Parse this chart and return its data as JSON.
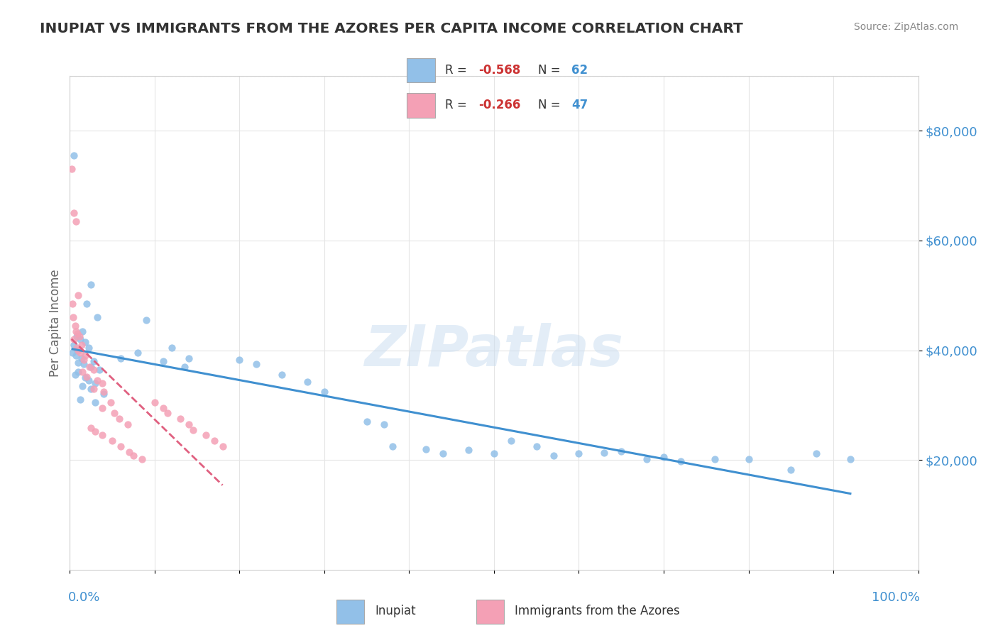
{
  "title": "INUPIAT VS IMMIGRANTS FROM THE AZORES PER CAPITA INCOME CORRELATION CHART",
  "source": "Source: ZipAtlas.com",
  "ylabel": "Per Capita Income",
  "legend_label1": "Inupiat",
  "legend_label2": "Immigrants from the Azores",
  "r1": -0.568,
  "n1": 62,
  "r2": -0.266,
  "n2": 47,
  "yticks": [
    20000,
    40000,
    60000,
    80000
  ],
  "ytick_labels": [
    "$20,000",
    "$40,000",
    "$60,000",
    "$80,000"
  ],
  "color_blue": "#92c0e8",
  "color_pink": "#f4a0b5",
  "line_blue": "#4090d0",
  "line_pink": "#e06080",
  "watermark": "ZIPatlas",
  "title_color": "#333333",
  "source_color": "#888888",
  "tick_color": "#4090d0",
  "inupiat_points": [
    [
      0.5,
      75500
    ],
    [
      2.5,
      52000
    ],
    [
      2.0,
      48500
    ],
    [
      3.2,
      46000
    ],
    [
      1.5,
      43500
    ],
    [
      0.8,
      42500
    ],
    [
      1.2,
      42000
    ],
    [
      1.8,
      41500
    ],
    [
      0.5,
      41000
    ],
    [
      2.2,
      40500
    ],
    [
      0.9,
      40000
    ],
    [
      0.3,
      39500
    ],
    [
      0.7,
      39000
    ],
    [
      1.4,
      38500
    ],
    [
      2.8,
      38000
    ],
    [
      1.0,
      37800
    ],
    [
      1.6,
      37500
    ],
    [
      2.5,
      37000
    ],
    [
      3.5,
      36500
    ],
    [
      1.0,
      36000
    ],
    [
      0.6,
      35500
    ],
    [
      1.8,
      35000
    ],
    [
      2.2,
      34500
    ],
    [
      3.0,
      34000
    ],
    [
      1.5,
      33500
    ],
    [
      2.5,
      33000
    ],
    [
      4.0,
      32000
    ],
    [
      1.2,
      31000
    ],
    [
      3.0,
      30500
    ],
    [
      6.0,
      38500
    ],
    [
      8.0,
      39500
    ],
    [
      9.0,
      45500
    ],
    [
      12.0,
      40500
    ],
    [
      11.0,
      38000
    ],
    [
      14.0,
      38500
    ],
    [
      13.5,
      37000
    ],
    [
      20.0,
      38200
    ],
    [
      22.0,
      37500
    ],
    [
      25.0,
      35500
    ],
    [
      28.0,
      34200
    ],
    [
      30.0,
      32500
    ],
    [
      35.0,
      27000
    ],
    [
      37.0,
      26500
    ],
    [
      38.0,
      22500
    ],
    [
      42.0,
      22000
    ],
    [
      44.0,
      21200
    ],
    [
      47.0,
      21800
    ],
    [
      50.0,
      21200
    ],
    [
      52.0,
      23500
    ],
    [
      55.0,
      22500
    ],
    [
      57.0,
      20800
    ],
    [
      60.0,
      21200
    ],
    [
      63.0,
      21300
    ],
    [
      65.0,
      21600
    ],
    [
      68.0,
      20200
    ],
    [
      70.0,
      20600
    ],
    [
      72.0,
      19800
    ],
    [
      76.0,
      20200
    ],
    [
      80.0,
      20100
    ],
    [
      85.0,
      18200
    ],
    [
      88.0,
      21200
    ],
    [
      92.0,
      20100
    ]
  ],
  "azores_points": [
    [
      0.2,
      73000
    ],
    [
      0.5,
      65000
    ],
    [
      0.7,
      63500
    ],
    [
      1.0,
      50000
    ],
    [
      0.3,
      48500
    ],
    [
      0.4,
      46000
    ],
    [
      0.6,
      44500
    ],
    [
      0.7,
      43500
    ],
    [
      0.9,
      43000
    ],
    [
      1.1,
      42500
    ],
    [
      0.5,
      42000
    ],
    [
      1.4,
      41000
    ],
    [
      0.8,
      40500
    ],
    [
      1.0,
      40000
    ],
    [
      1.2,
      39500
    ],
    [
      1.8,
      39000
    ],
    [
      1.6,
      38200
    ],
    [
      2.3,
      37000
    ],
    [
      2.8,
      36500
    ],
    [
      1.5,
      36000
    ],
    [
      2.0,
      35200
    ],
    [
      3.2,
      34500
    ],
    [
      3.8,
      34000
    ],
    [
      2.8,
      33000
    ],
    [
      4.0,
      32500
    ],
    [
      4.8,
      30500
    ],
    [
      3.8,
      29500
    ],
    [
      5.2,
      28500
    ],
    [
      5.8,
      27500
    ],
    [
      6.8,
      26500
    ],
    [
      2.5,
      25800
    ],
    [
      3.0,
      25200
    ],
    [
      3.8,
      24500
    ],
    [
      5.0,
      23500
    ],
    [
      6.0,
      22500
    ],
    [
      7.0,
      21500
    ],
    [
      7.5,
      20800
    ],
    [
      8.5,
      20200
    ],
    [
      10.0,
      30500
    ],
    [
      11.0,
      29500
    ],
    [
      11.5,
      28500
    ],
    [
      13.0,
      27500
    ],
    [
      14.0,
      26500
    ],
    [
      14.5,
      25500
    ],
    [
      16.0,
      24500
    ],
    [
      17.0,
      23500
    ],
    [
      18.0,
      22500
    ]
  ]
}
